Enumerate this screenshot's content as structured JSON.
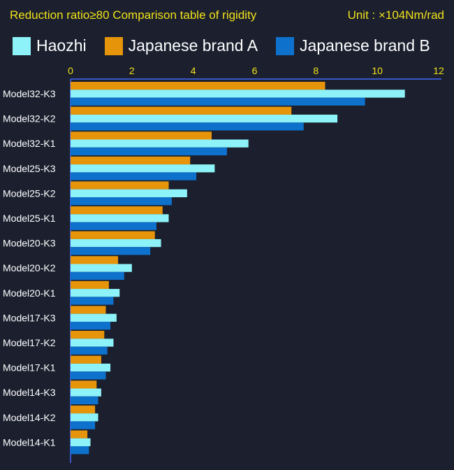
{
  "header": {
    "title": "Reduction ratio≥80  Comparison table of rigidity",
    "unit": "Unit : ×104Nm/rad"
  },
  "colors": {
    "background": "#1b1f2e",
    "axis": "#3a55c8",
    "tick_text": "#f1e21a"
  },
  "chart_data": {
    "type": "bar",
    "orientation": "horizontal",
    "title": "Reduction ratio≥80  Comparison table of rigidity",
    "xlim": [
      0,
      12
    ],
    "xticks": [
      0,
      2,
      4,
      6,
      8,
      10,
      12
    ],
    "x_axis_position": "top",
    "grid": false,
    "legend_position": "top",
    "categories": [
      "Model32-K3",
      "Model32-K2",
      "Model32-K1",
      "Model25-K3",
      "Model25-K2",
      "Model25-K1",
      "Model20-K3",
      "Model20-K2",
      "Model20-K1",
      "Model17-K3",
      "Model17-K2",
      "Model17-K1",
      "Model14-K3",
      "Model14-K2",
      "Model14-K1"
    ],
    "series": [
      {
        "name": "Japanese brand A",
        "color": "#e6950a",
        "values": [
          8.3,
          7.2,
          4.6,
          3.9,
          3.2,
          3.0,
          2.75,
          1.55,
          1.25,
          1.15,
          1.1,
          1.0,
          0.85,
          0.8,
          0.55
        ]
      },
      {
        "name": "Haozhi",
        "color": "#8ef3f8",
        "values": [
          10.9,
          8.7,
          5.8,
          4.7,
          3.8,
          3.2,
          2.95,
          2.0,
          1.6,
          1.5,
          1.4,
          1.3,
          1.0,
          0.9,
          0.65
        ]
      },
      {
        "name": "Japanese brand B",
        "color": "#0e72cc",
        "values": [
          9.6,
          7.6,
          5.1,
          4.1,
          3.3,
          2.8,
          2.6,
          1.75,
          1.4,
          1.3,
          1.2,
          1.15,
          0.9,
          0.8,
          0.6
        ]
      }
    ],
    "legend_order": [
      "Haozhi",
      "Japanese brand A",
      "Japanese brand B"
    ]
  }
}
